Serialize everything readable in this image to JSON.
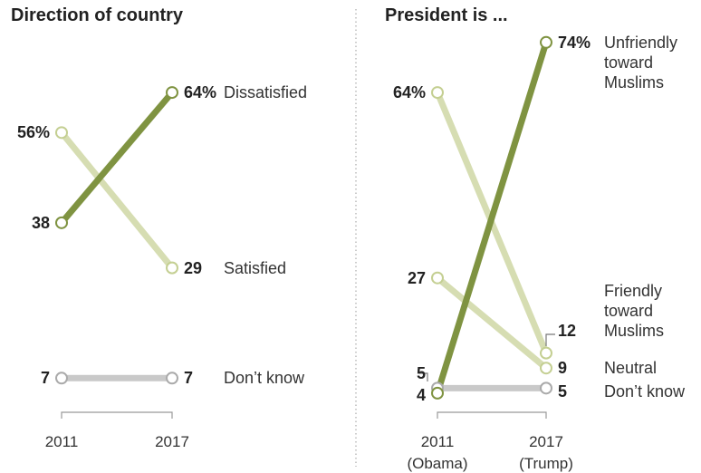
{
  "chart_data": [
    {
      "type": "line",
      "title": "Direction of country",
      "categories": [
        "2011",
        "2017"
      ],
      "ylim": [
        0,
        80
      ],
      "series": [
        {
          "name": "Dissatisfied",
          "color": "#7f9341",
          "values": [
            38,
            64
          ],
          "value_labels": [
            "38",
            "64%"
          ]
        },
        {
          "name": "Satisfied",
          "color": "#d6ddb2",
          "values": [
            56,
            29
          ],
          "value_labels": [
            "56%",
            "29"
          ]
        },
        {
          "name": "Don’t know",
          "color": "#c9c9c9",
          "values": [
            7,
            7
          ],
          "value_labels": [
            "7",
            "7"
          ]
        }
      ]
    },
    {
      "type": "line",
      "title": "President is ...",
      "categories": [
        "2011 (Obama)",
        "2017 (Trump)"
      ],
      "ylim": [
        0,
        80
      ],
      "series": [
        {
          "name": "Unfriendly toward Muslims",
          "color": "#7f9341",
          "values": [
            4,
            74
          ],
          "value_labels": [
            "4",
            "74%"
          ]
        },
        {
          "name": "Friendly toward Muslims",
          "color": "#d6ddb2",
          "values": [
            64,
            12
          ],
          "value_labels": [
            "64%",
            "12"
          ]
        },
        {
          "name": "Neutral",
          "color": "#d6ddb2",
          "values": [
            27,
            9
          ],
          "value_labels": [
            "27",
            "9"
          ]
        },
        {
          "name": "Don’t know",
          "color": "#c9c9c9",
          "values": [
            5,
            5
          ],
          "value_labels": [
            "5",
            "5"
          ]
        }
      ]
    }
  ]
}
